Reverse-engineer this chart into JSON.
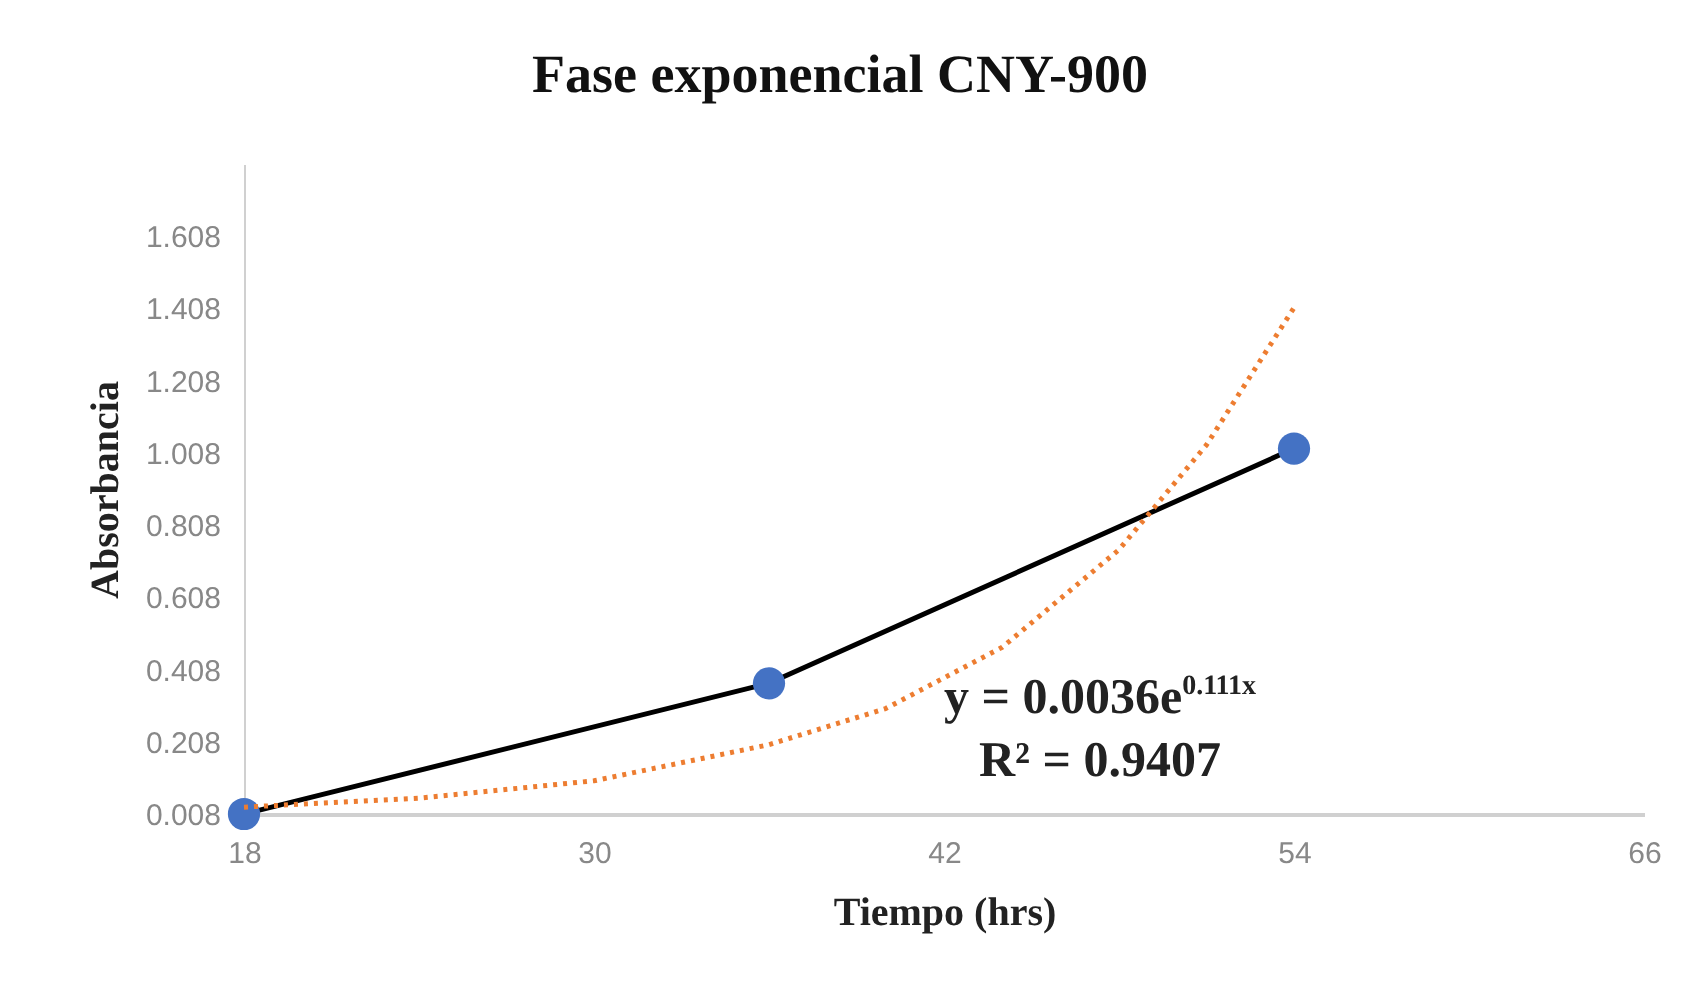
{
  "chart_data": {
    "type": "line",
    "title": "Fase exponencial CNY-900",
    "xlabel": "Tiempo (hrs)",
    "ylabel": "Absorbancia",
    "xlim": [
      18,
      66
    ],
    "xticks": [
      18,
      30,
      42,
      54,
      66
    ],
    "ylim": [
      0.008,
      1.808
    ],
    "yticks": [
      0.008,
      0.208,
      0.408,
      0.608,
      0.808,
      1.008,
      1.208,
      1.408,
      1.608
    ],
    "grid": false,
    "series": [
      {
        "x": [
          18,
          36,
          54
        ],
        "values": [
          0.008,
          0.37,
          1.02
        ],
        "color": "#4472c4",
        "marker": "circle",
        "line_style": "solid"
      },
      {
        "x": [
          18,
          24,
          30,
          36,
          40,
          44,
          48,
          51,
          54
        ],
        "values": [
          0.027,
          0.052,
          0.1,
          0.2,
          0.3,
          0.47,
          0.74,
          1.03,
          1.41
        ],
        "color": "#ed7d31",
        "marker": "none",
        "line_style": "dotted"
      }
    ],
    "annotations": [
      "y = 0.0036e$^{0.111x}$",
      "R² = 0.9407"
    ]
  }
}
